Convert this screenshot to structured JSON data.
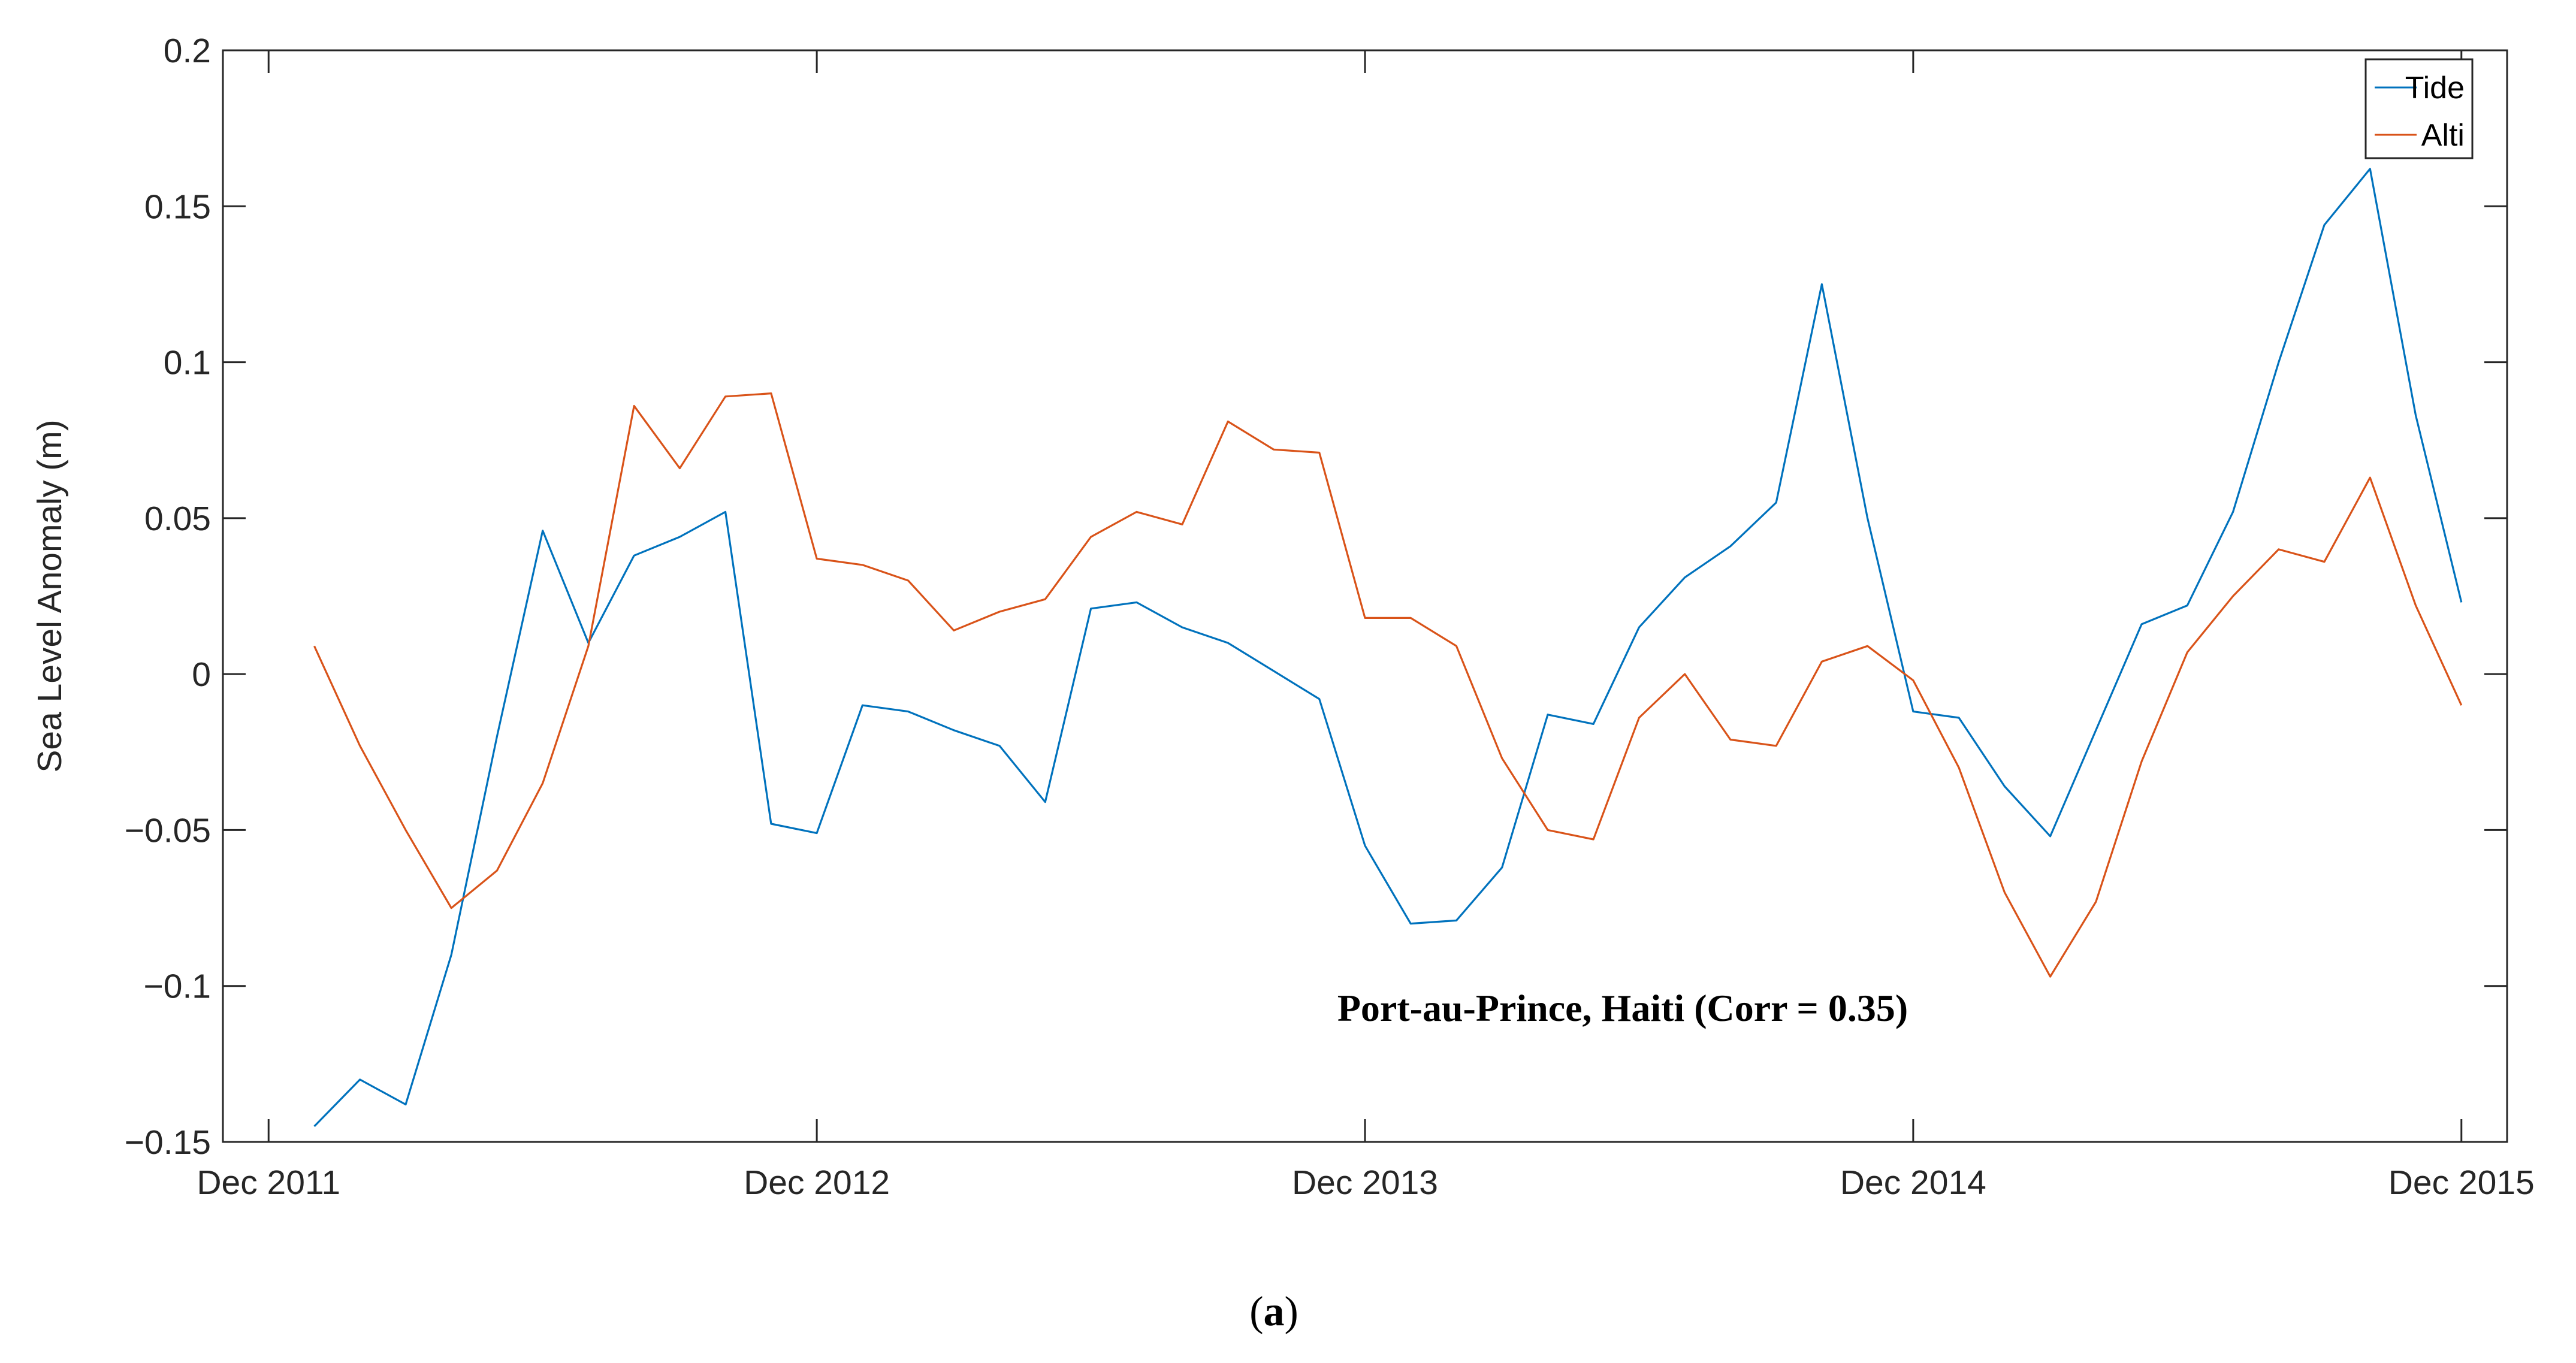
{
  "chart_data": {
    "type": "line",
    "title": "",
    "xlabel": "",
    "ylabel": "Sea Level Anomaly (m)",
    "ylim": [
      -0.15,
      0.2
    ],
    "yticks": [
      0.2,
      0.15,
      0.1,
      0.05,
      0,
      -0.05,
      -0.1,
      -0.15
    ],
    "ytick_labels": [
      "0.2",
      "0.15",
      "0.1",
      "0.05",
      "0",
      "−0.05",
      "−0.1",
      "−0.15"
    ],
    "xlim": [
      "2011-11",
      "2016-01"
    ],
    "xticks": [
      "2011-12",
      "2012-12",
      "2013-12",
      "2014-12",
      "2015-12"
    ],
    "xtick_labels": [
      "Dec 2011",
      "Dec 2012",
      "Dec 2013",
      "Dec 2014",
      "Dec 2015"
    ],
    "grid": false,
    "legend_position": "top-right",
    "annotation": "Port-au-Prince, Haiti (Corr = 0.35)",
    "x": [
      "2012-01",
      "2012-02",
      "2012-03",
      "2012-04",
      "2012-05",
      "2012-06",
      "2012-07",
      "2012-08",
      "2012-09",
      "2012-10",
      "2012-11",
      "2012-12",
      "2013-01",
      "2013-02",
      "2013-03",
      "2013-04",
      "2013-05",
      "2013-06",
      "2013-07",
      "2013-08",
      "2013-09",
      "2013-10",
      "2013-11",
      "2013-12",
      "2014-01",
      "2014-02",
      "2014-03",
      "2014-04",
      "2014-05",
      "2014-06",
      "2014-07",
      "2014-08",
      "2014-09",
      "2014-10",
      "2014-11",
      "2014-12",
      "2015-01",
      "2015-02",
      "2015-03",
      "2015-04",
      "2015-05",
      "2015-06",
      "2015-07",
      "2015-08",
      "2015-09",
      "2015-10",
      "2015-11",
      "2015-12"
    ],
    "series": [
      {
        "name": "Tide",
        "color": "#0072BD",
        "values": [
          -0.145,
          -0.13,
          -0.138,
          -0.09,
          -0.02,
          0.046,
          0.01,
          0.038,
          0.044,
          0.052,
          -0.048,
          -0.051,
          -0.01,
          -0.012,
          -0.018,
          -0.023,
          -0.041,
          0.021,
          0.023,
          0.015,
          0.01,
          0.001,
          -0.008,
          -0.055,
          -0.08,
          -0.079,
          -0.062,
          -0.013,
          -0.016,
          0.015,
          0.031,
          0.041,
          0.055,
          0.125,
          0.05,
          -0.012,
          -0.014,
          -0.036,
          -0.052,
          -0.018,
          0.016,
          0.022,
          0.052,
          0.1,
          0.144,
          0.162,
          0.083,
          0.023
        ]
      },
      {
        "name": "Alti",
        "color": "#D95319",
        "values": [
          0.009,
          -0.023,
          -0.05,
          -0.075,
          -0.063,
          -0.035,
          0.009,
          0.086,
          0.066,
          0.089,
          0.09,
          0.037,
          0.035,
          0.03,
          0.014,
          0.02,
          0.024,
          0.044,
          0.052,
          0.048,
          0.081,
          0.072,
          0.071,
          0.018,
          0.018,
          0.009,
          -0.027,
          -0.05,
          -0.053,
          -0.014,
          0.0,
          -0.021,
          -0.023,
          0.004,
          0.009,
          -0.002,
          -0.03,
          -0.07,
          -0.097,
          -0.073,
          -0.028,
          0.007,
          0.025,
          0.04,
          0.036,
          0.063,
          0.022,
          -0.01
        ]
      }
    ]
  },
  "caption": {
    "open": "(",
    "letter": "a",
    "close": ")"
  }
}
